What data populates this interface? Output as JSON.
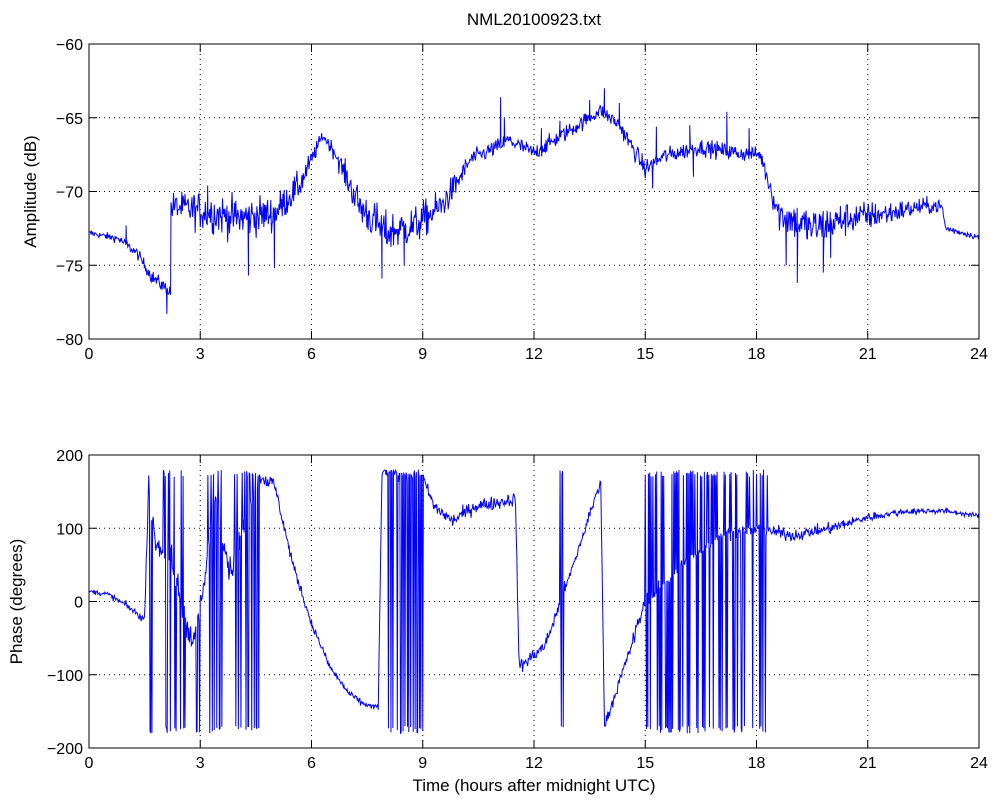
{
  "figure": {
    "title": "NML20100923.txt"
  },
  "chart_data": [
    {
      "type": "line",
      "title": "NML20100923.txt",
      "xlabel": "",
      "ylabel": "Amplitude (dB)",
      "xlim": [
        0,
        24
      ],
      "ylim": [
        -80,
        -60
      ],
      "x_ticks": [
        0,
        3,
        6,
        9,
        12,
        15,
        18,
        21,
        24
      ],
      "x_tick_labels": [
        "0",
        "3",
        "6",
        "9",
        "12",
        "15",
        "18",
        "21",
        "24"
      ],
      "y_ticks": [
        -80,
        -75,
        -70,
        -65,
        -60
      ],
      "y_tick_labels": [
        "−80",
        "−75",
        "−70",
        "−65",
        "−60"
      ],
      "grid": true,
      "series": [
        {
          "color": "#0000ff",
          "keyframes": [
            [
              0.0,
              -72.8,
              0.2
            ],
            [
              0.8,
              -73.2,
              0.3
            ],
            [
              1.3,
              -74.2,
              0.4
            ],
            [
              1.7,
              -75.8,
              0.5
            ],
            [
              2.2,
              -76.8,
              0.5
            ],
            [
              2.2,
              -71.0,
              1.0
            ],
            [
              3.0,
              -71.3,
              1.4
            ],
            [
              4.0,
              -71.8,
              1.5
            ],
            [
              5.0,
              -71.5,
              1.3
            ],
            [
              5.7,
              -69.5,
              1.0
            ],
            [
              6.3,
              -66.2,
              0.4
            ],
            [
              6.6,
              -67.2,
              0.6
            ],
            [
              7.3,
              -71.0,
              1.4
            ],
            [
              8.0,
              -72.8,
              1.5
            ],
            [
              8.8,
              -72.3,
              1.4
            ],
            [
              9.5,
              -71.0,
              1.2
            ],
            [
              9.9,
              -69.5,
              0.9
            ],
            [
              10.3,
              -67.8,
              0.6
            ],
            [
              11.0,
              -67.0,
              0.6
            ],
            [
              11.3,
              -66.5,
              0.6
            ],
            [
              12.0,
              -67.4,
              0.6
            ],
            [
              13.0,
              -65.8,
              0.6
            ],
            [
              13.8,
              -64.5,
              0.5
            ],
            [
              14.3,
              -65.5,
              0.6
            ],
            [
              15.0,
              -68.5,
              0.7
            ],
            [
              15.5,
              -67.6,
              0.6
            ],
            [
              16.5,
              -67.0,
              0.6
            ],
            [
              17.5,
              -67.4,
              0.6
            ],
            [
              18.1,
              -67.5,
              0.5
            ],
            [
              18.6,
              -71.5,
              1.3
            ],
            [
              19.5,
              -72.5,
              1.5
            ],
            [
              20.5,
              -71.8,
              1.2
            ],
            [
              21.5,
              -71.5,
              0.9
            ],
            [
              22.5,
              -71.0,
              0.6
            ],
            [
              23.0,
              -71.0,
              0.5
            ],
            [
              23.1,
              -72.5,
              0.3
            ],
            [
              24.0,
              -73.1,
              0.2
            ]
          ],
          "spikes": [
            [
              2.1,
              -78.3
            ],
            [
              2.2,
              -77.0
            ],
            [
              1.0,
              -72.3
            ],
            [
              3.2,
              -69.6
            ],
            [
              4.3,
              -75.7
            ],
            [
              5.0,
              -75.2
            ],
            [
              7.9,
              -75.9
            ],
            [
              8.5,
              -75.0
            ],
            [
              11.1,
              -63.6
            ],
            [
              11.2,
              -65.0
            ],
            [
              12.2,
              -65.7
            ],
            [
              12.7,
              -65.2
            ],
            [
              13.5,
              -63.8
            ],
            [
              13.9,
              -63.0
            ],
            [
              14.3,
              -64.0
            ],
            [
              15.3,
              -65.6
            ],
            [
              15.2,
              -69.8
            ],
            [
              16.2,
              -65.5
            ],
            [
              16.3,
              -69.0
            ],
            [
              17.2,
              -64.6
            ],
            [
              17.8,
              -65.7
            ],
            [
              18.8,
              -75.0
            ],
            [
              19.1,
              -76.2
            ],
            [
              19.8,
              -75.5
            ],
            [
              20.0,
              -74.5
            ]
          ]
        }
      ]
    },
    {
      "type": "line",
      "title": "",
      "xlabel": "Time (hours after midnight UTC)",
      "ylabel": "Phase (degrees)",
      "xlim": [
        0,
        24
      ],
      "ylim": [
        -200,
        200
      ],
      "x_ticks": [
        0,
        3,
        6,
        9,
        12,
        15,
        18,
        21,
        24
      ],
      "x_tick_labels": [
        "0",
        "3",
        "6",
        "9",
        "12",
        "15",
        "18",
        "21",
        "24"
      ],
      "y_ticks": [
        -200,
        -100,
        0,
        100,
        200
      ],
      "y_tick_labels": [
        "−200",
        "−100",
        "0",
        "100",
        "200"
      ],
      "grid": true,
      "series": [
        {
          "color": "#0000ff",
          "keyframes": [
            [
              0.0,
              14,
              3
            ],
            [
              0.5,
              10,
              4
            ],
            [
              1.0,
              -5,
              5
            ],
            [
              1.5,
              -25,
              6
            ],
            [
              1.6,
              150,
              10
            ],
            [
              1.8,
              80,
              20
            ],
            [
              2.2,
              60,
              25
            ],
            [
              2.8,
              -60,
              20
            ],
            [
              3.1,
              20,
              15
            ],
            [
              3.4,
              150,
              15
            ],
            [
              3.8,
              40,
              20
            ],
            [
              4.3,
              120,
              20
            ],
            [
              4.6,
              170,
              10
            ],
            [
              5.0,
              160,
              10
            ],
            [
              5.5,
              50,
              8
            ],
            [
              6.0,
              -30,
              6
            ],
            [
              6.5,
              -90,
              5
            ],
            [
              7.0,
              -125,
              5
            ],
            [
              7.4,
              -140,
              4
            ],
            [
              7.8,
              -145,
              5
            ],
            [
              7.9,
              175,
              8
            ],
            [
              9.0,
              170,
              8
            ],
            [
              9.3,
              130,
              10
            ],
            [
              9.8,
              110,
              10
            ],
            [
              10.4,
              130,
              10
            ],
            [
              11.0,
              135,
              10
            ],
            [
              11.5,
              140,
              10
            ],
            [
              11.6,
              -90,
              10
            ],
            [
              12.3,
              -60,
              10
            ],
            [
              13.0,
              40,
              10
            ],
            [
              13.8,
              165,
              8
            ],
            [
              13.9,
              -170,
              6
            ],
            [
              14.5,
              -80,
              10
            ],
            [
              15.0,
              0,
              10
            ],
            [
              16.0,
              50,
              10
            ],
            [
              17.0,
              90,
              10
            ],
            [
              18.0,
              100,
              10
            ],
            [
              19.0,
              90,
              8
            ],
            [
              20.0,
              100,
              8
            ],
            [
              21.0,
              115,
              6
            ],
            [
              22.0,
              123,
              5
            ],
            [
              23.0,
              124,
              4
            ],
            [
              24.0,
              117,
              3
            ]
          ],
          "wraps": [
            [
              1.6,
              1.75,
              6
            ],
            [
              2.0,
              2.6,
              5
            ],
            [
              2.85,
              3.0,
              2
            ],
            [
              3.2,
              3.6,
              6
            ],
            [
              3.9,
              4.6,
              10
            ],
            [
              7.9,
              8.0,
              2
            ],
            [
              8.05,
              9.05,
              40
            ],
            [
              12.7,
              12.8,
              2
            ],
            [
              15.0,
              18.4,
              90
            ]
          ]
        }
      ]
    }
  ]
}
